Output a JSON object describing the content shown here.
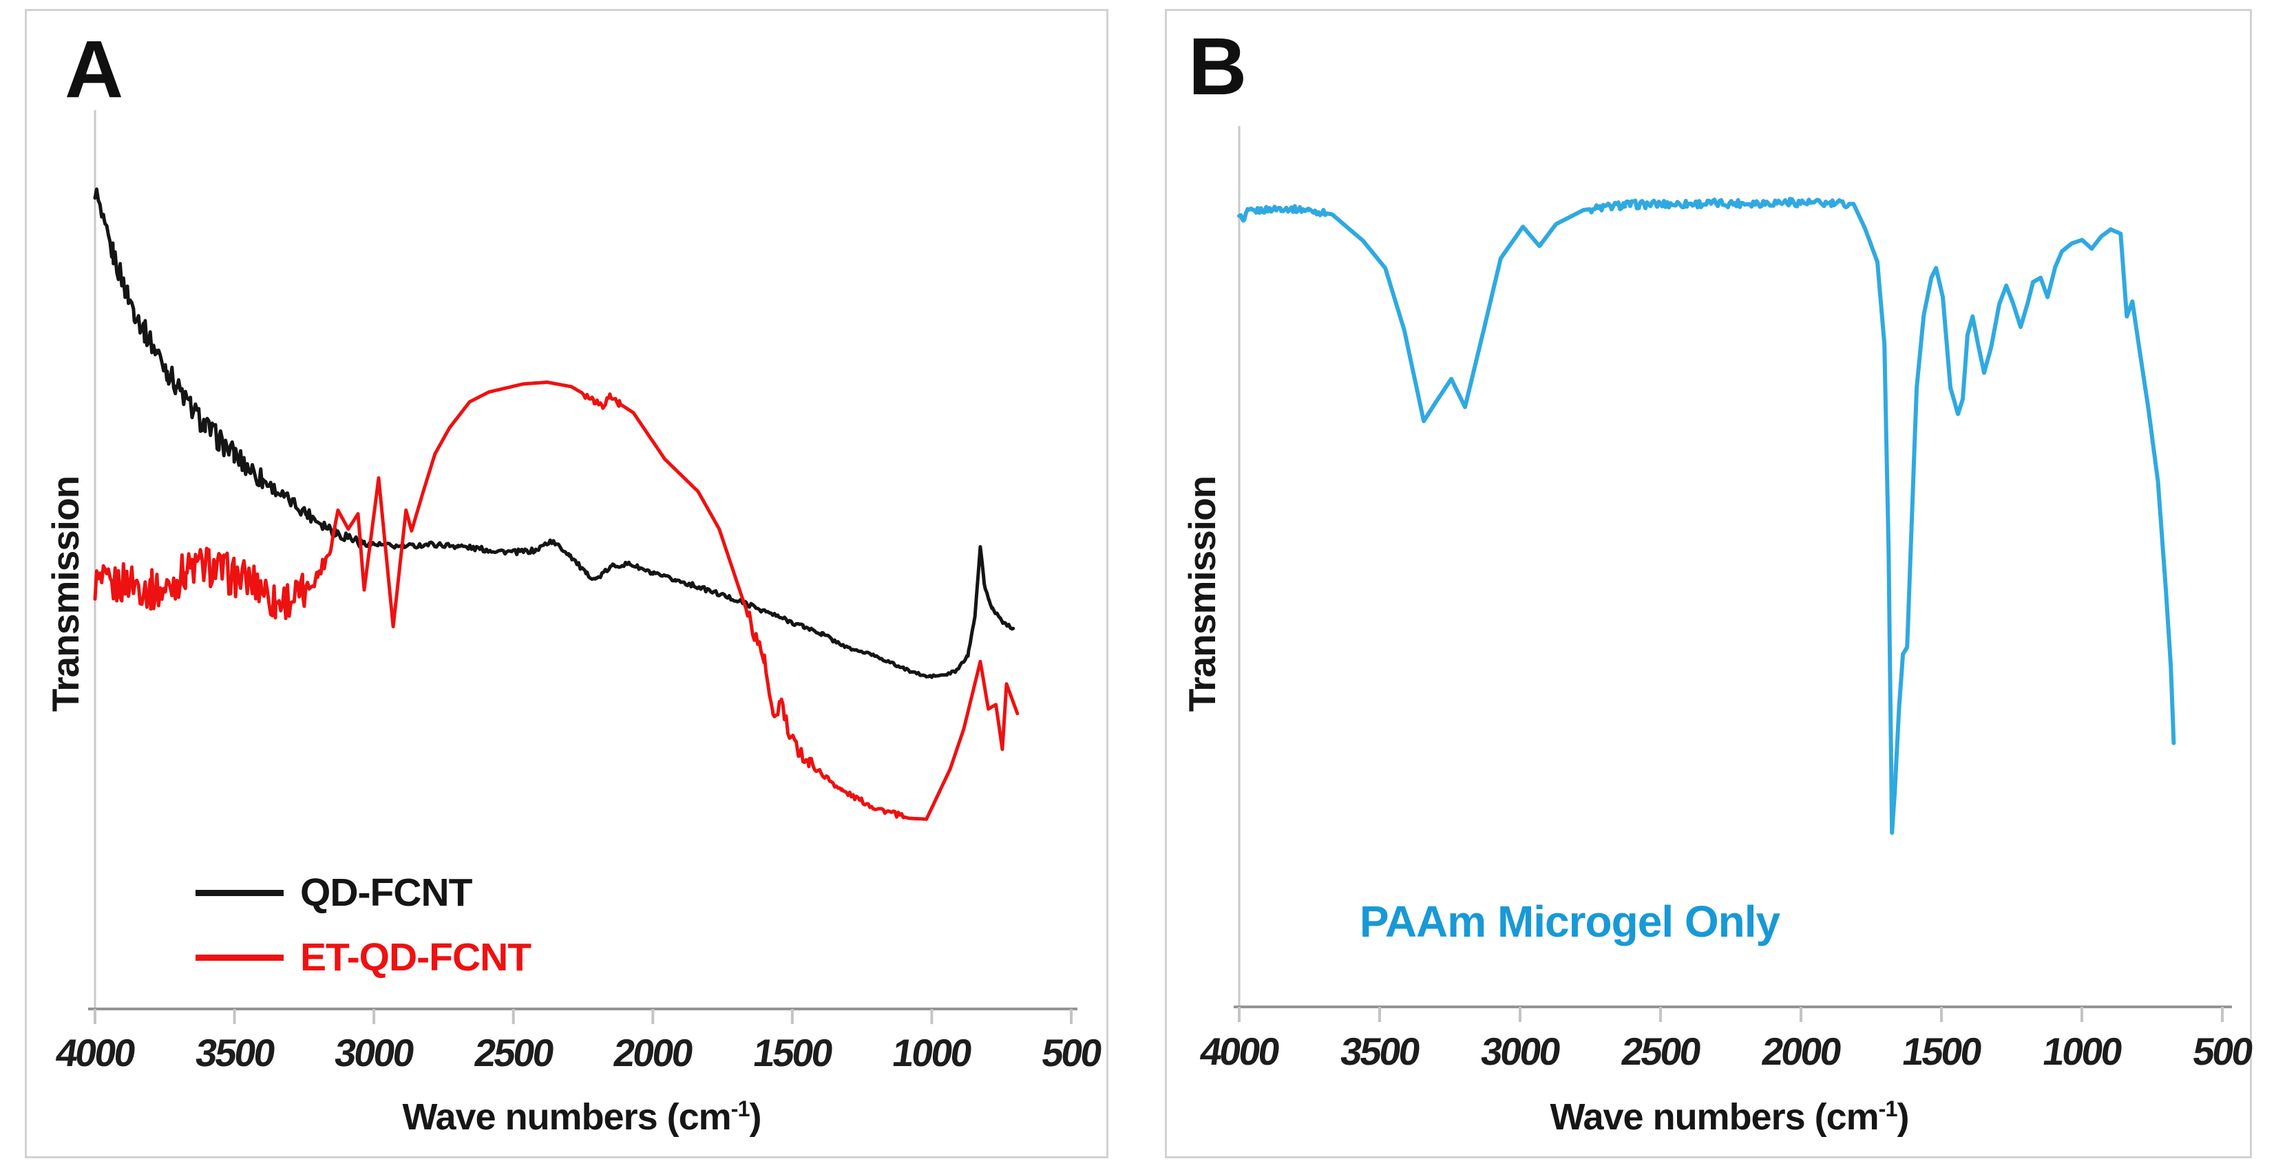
{
  "figure": {
    "panels": [
      {
        "id": "A",
        "panel_label": "A",
        "y_axis": {
          "label": "Transmission",
          "scale": "arbitrary (no tick labels)"
        },
        "x_axis": {
          "label_text": "Wave numbers (cm-1)",
          "label_prefix": "Wave numbers (cm",
          "label_sup": "-1",
          "label_suffix": ")"
        }
      },
      {
        "id": "B",
        "panel_label": "B",
        "y_axis": {
          "label": "Transmission",
          "scale": "arbitrary (no tick labels)"
        },
        "x_axis": {
          "label_text": "Wave numbers (cm-1)",
          "label_prefix": "Wave numbers (cm",
          "label_sup": "-1",
          "label_suffix": ")"
        },
        "annotation": {
          "text": "PAAm Microgel Only",
          "color": "#1899d6"
        }
      }
    ]
  },
  "chart_data": [
    {
      "type": "line",
      "panel": "A",
      "title": "",
      "xlabel": "Wave numbers (cm-1)",
      "ylabel": "Transmission",
      "x_range": [
        4000,
        500
      ],
      "x_axis_reversed": true,
      "grid": false,
      "legend_position": "lower-left inside plot",
      "x_axis": {
        "ticks": [
          4000,
          3500,
          3000,
          2500,
          2000,
          1500,
          1000,
          500
        ]
      },
      "y_units": "arbitrary transmission (0-100 est.)",
      "series": [
        {
          "name": "QD-FCNT",
          "color": "#151515",
          "stroke_width": 5,
          "points": [
            [
              4000,
              91.6
            ],
            [
              3968,
              87.2
            ],
            [
              3936,
              84.4
            ],
            [
              3916,
              82.6
            ],
            [
              3884,
              79.8
            ],
            [
              3859,
              78.0
            ],
            [
              3822,
              75.7
            ],
            [
              3780,
              73.4
            ],
            [
              3741,
              71.3
            ],
            [
              3709,
              69.7
            ],
            [
              3657,
              67.2
            ],
            [
              3605,
              65.1
            ],
            [
              3553,
              63.5
            ],
            [
              3501,
              61.9
            ],
            [
              3450,
              60.5
            ],
            [
              3398,
              59.1
            ],
            [
              3326,
              57.3
            ],
            [
              3242,
              55.4
            ],
            [
              3139,
              53.3
            ],
            [
              3035,
              52.0
            ],
            [
              2900,
              51.6
            ],
            [
              2800,
              51.9
            ],
            [
              2700,
              51.7
            ],
            [
              2600,
              51.3
            ],
            [
              2500,
              51.0
            ],
            [
              2420,
              51.2
            ],
            [
              2366,
              52.3
            ],
            [
              2300,
              50.8
            ],
            [
              2240,
              48.6
            ],
            [
              2203,
              48.0
            ],
            [
              2144,
              49.5
            ],
            [
              2082,
              49.7
            ],
            [
              2000,
              48.6
            ],
            [
              1920,
              47.9
            ],
            [
              1863,
              47.4
            ],
            [
              1750,
              46.2
            ],
            [
              1675,
              45.4
            ],
            [
              1550,
              43.8
            ],
            [
              1460,
              42.7
            ],
            [
              1394,
              41.9
            ],
            [
              1300,
              40.3
            ],
            [
              1206,
              39.5
            ],
            [
              1100,
              38.0
            ],
            [
              1019,
              37.1
            ],
            [
              950,
              37.3
            ],
            [
              910,
              37.8
            ],
            [
              870,
              39.5
            ],
            [
              845,
              44.0
            ],
            [
              826,
              51.6
            ],
            [
              812,
              47.5
            ],
            [
              795,
              45.6
            ],
            [
              782,
              44.7
            ],
            [
              745,
              43.2
            ],
            [
              708,
              42.5
            ]
          ],
          "noise_zones": [
            {
              "from": 4000,
              "to": 3400,
              "amp": 1.3
            },
            {
              "from": 3400,
              "to": 3050,
              "amp": 0.7
            },
            {
              "from": 3050,
              "to": 2250,
              "amp": 0.3
            },
            {
              "from": 2250,
              "to": 1350,
              "amp": 0.25
            },
            {
              "from": 1350,
              "to": 710,
              "amp": 0.15
            }
          ]
        },
        {
          "name": "ET-QD-FCNT",
          "color": "#ee1111",
          "stroke_width": 5,
          "points": [
            [
              4000,
              47.6
            ],
            [
              3946,
              47.0
            ],
            [
              3880,
              47.9
            ],
            [
              3800,
              46.8
            ],
            [
              3748,
              46.7
            ],
            [
              3700,
              48.2
            ],
            [
              3674,
              49.0
            ],
            [
              3600,
              49.6
            ],
            [
              3550,
              48.9
            ],
            [
              3501,
              48.3
            ],
            [
              3403,
              47.3
            ],
            [
              3353,
              45.3
            ],
            [
              3304,
              45.9
            ],
            [
              3255,
              46.3
            ],
            [
              3205,
              48.3
            ],
            [
              3156,
              51.3
            ],
            [
              3129,
              55.7
            ],
            [
              3092,
              53.6
            ],
            [
              3057,
              55.3
            ],
            [
              3035,
              46.8
            ],
            [
              2983,
              59.3
            ],
            [
              2931,
              42.7
            ],
            [
              2885,
              55.7
            ],
            [
              2865,
              53.4
            ],
            [
              2823,
              57.8
            ],
            [
              2781,
              62.0
            ],
            [
              2729,
              64.9
            ],
            [
              2657,
              67.8
            ],
            [
              2588,
              68.9
            ],
            [
              2465,
              69.8
            ],
            [
              2379,
              70.0
            ],
            [
              2292,
              69.5
            ],
            [
              2210,
              68.0
            ],
            [
              2179,
              67.4
            ],
            [
              2154,
              68.5
            ],
            [
              2120,
              67.6
            ],
            [
              2070,
              66.6
            ],
            [
              1957,
              61.4
            ],
            [
              1838,
              57.8
            ],
            [
              1762,
              53.6
            ],
            [
              1675,
              45.5
            ],
            [
              1601,
              39.0
            ],
            [
              1569,
              32.2
            ],
            [
              1539,
              34.4
            ],
            [
              1510,
              30.2
            ],
            [
              1478,
              29.0
            ],
            [
              1441,
              27.5
            ],
            [
              1322,
              24.4
            ],
            [
              1206,
              22.5
            ],
            [
              1083,
              21.3
            ],
            [
              1019,
              21.2
            ],
            [
              934,
              26.8
            ],
            [
              885,
              31.3
            ],
            [
              826,
              38.8
            ],
            [
              797,
              33.5
            ],
            [
              770,
              34.0
            ],
            [
              747,
              29.0
            ],
            [
              732,
              36.3
            ],
            [
              693,
              33.0
            ]
          ],
          "noise_zones": [
            {
              "from": 4000,
              "to": 3250,
              "amp": 2.3
            },
            {
              "from": 3250,
              "to": 3150,
              "amp": 0.8
            },
            {
              "from": 2250,
              "to": 2120,
              "amp": 0.4
            },
            {
              "from": 1660,
              "to": 1430,
              "amp": 0.9
            },
            {
              "from": 1430,
              "to": 1100,
              "amp": 0.3
            }
          ]
        }
      ]
    },
    {
      "type": "line",
      "panel": "B",
      "title": "",
      "xlabel": "Wave numbers (cm-1)",
      "ylabel": "Transmission",
      "x_range": [
        4000,
        500
      ],
      "x_axis_reversed": true,
      "grid": false,
      "x_axis": {
        "ticks": [
          4000,
          3500,
          3000,
          2500,
          2000,
          1500,
          1000,
          500
        ]
      },
      "y_units": "arbitrary transmission (0-100 est.)",
      "series": [
        {
          "name": "PAAm Microgel Only",
          "color": "#2fa9e1",
          "stroke_width": 6,
          "points": [
            [
              4000,
              90.2
            ],
            [
              3985,
              89.2
            ],
            [
              3970,
              90.4
            ],
            [
              3853,
              90.8
            ],
            [
              3755,
              90.6
            ],
            [
              3669,
              90.1
            ],
            [
              3559,
              87.1
            ],
            [
              3480,
              84.0
            ],
            [
              3412,
              76.9
            ],
            [
              3343,
              66.6
            ],
            [
              3301,
              68.7
            ],
            [
              3245,
              71.4
            ],
            [
              3196,
              68.2
            ],
            [
              3127,
              77.3
            ],
            [
              3069,
              85.1
            ],
            [
              2990,
              88.7
            ],
            [
              2931,
              86.5
            ],
            [
              2872,
              89.0
            ],
            [
              2774,
              90.6
            ],
            [
              2627,
              91.2
            ],
            [
              2406,
              91.3
            ],
            [
              2161,
              91.4
            ],
            [
              2039,
              91.5
            ],
            [
              1892,
              91.3
            ],
            [
              1813,
              91.3
            ],
            [
              1772,
              88.5
            ],
            [
              1728,
              84.7
            ],
            [
              1703,
              75.4
            ],
            [
              1688,
              51.9
            ],
            [
              1676,
              19.8
            ],
            [
              1666,
              24.5
            ],
            [
              1651,
              33.9
            ],
            [
              1637,
              40.1
            ],
            [
              1622,
              40.9
            ],
            [
              1605,
              55.8
            ],
            [
              1588,
              70.4
            ],
            [
              1563,
              78.6
            ],
            [
              1536,
              82.9
            ],
            [
              1519,
              84.0
            ],
            [
              1495,
              80.7
            ],
            [
              1468,
              70.4
            ],
            [
              1441,
              67.4
            ],
            [
              1424,
              69.1
            ],
            [
              1407,
              76.4
            ],
            [
              1389,
              78.5
            ],
            [
              1370,
              75.4
            ],
            [
              1348,
              72.1
            ],
            [
              1323,
              75.0
            ],
            [
              1294,
              79.9
            ],
            [
              1269,
              82.0
            ],
            [
              1245,
              80.0
            ],
            [
              1218,
              77.3
            ],
            [
              1193,
              80.0
            ],
            [
              1174,
              82.4
            ],
            [
              1147,
              82.9
            ],
            [
              1122,
              80.7
            ],
            [
              1095,
              84.1
            ],
            [
              1071,
              85.9
            ],
            [
              1036,
              86.8
            ],
            [
              999,
              87.2
            ],
            [
              965,
              86.2
            ],
            [
              931,
              87.6
            ],
            [
              897,
              88.4
            ],
            [
              862,
              87.9
            ],
            [
              840,
              78.5
            ],
            [
              820,
              80.2
            ],
            [
              798,
              75.4
            ],
            [
              764,
              68.2
            ],
            [
              729,
              59.7
            ],
            [
              700,
              47.0
            ],
            [
              683,
              38.6
            ],
            [
              673,
              30.0
            ]
          ],
          "noise_zones": [
            {
              "from": 4000,
              "to": 3690,
              "amp": 0.35
            },
            {
              "from": 2750,
              "to": 1830,
              "amp": 0.45
            }
          ]
        }
      ]
    }
  ]
}
